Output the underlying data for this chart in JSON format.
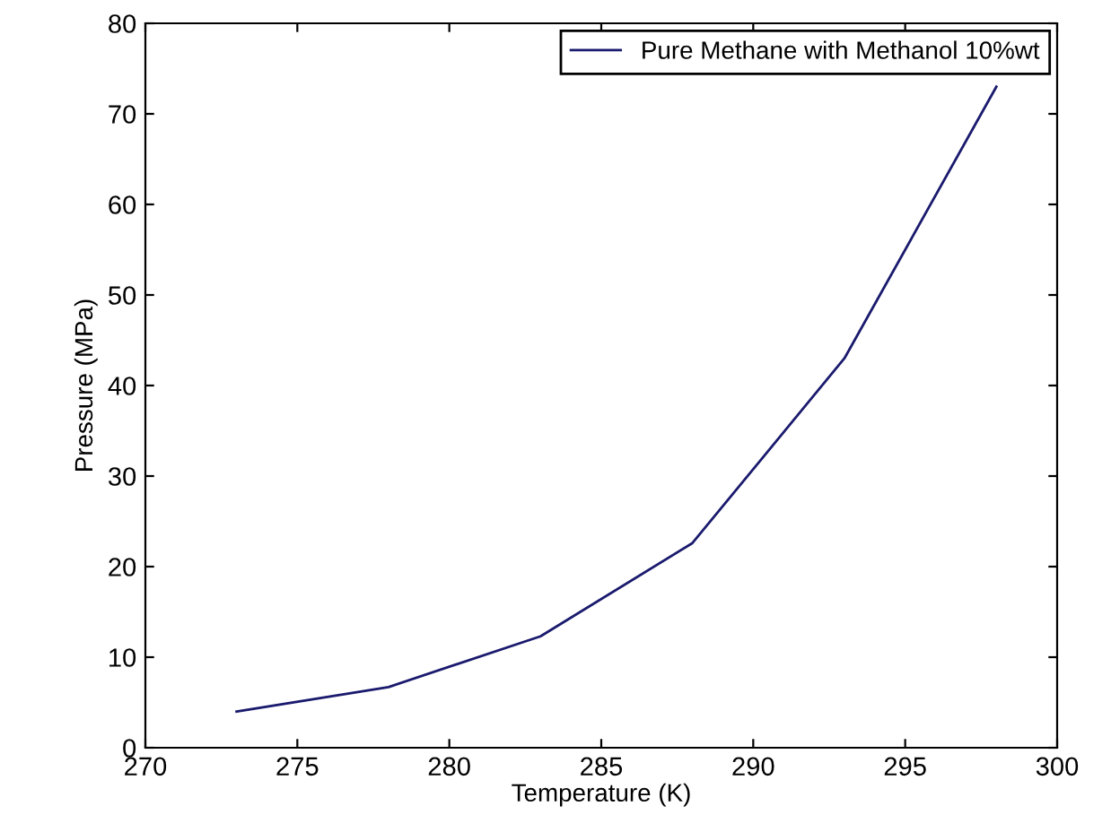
{
  "chart_data": {
    "type": "line",
    "xlabel": "Temperature (K)",
    "ylabel": "Pressure (MPa)",
    "x": [
      273,
      278,
      283,
      288,
      293,
      298
    ],
    "series": [
      {
        "name": "Pure Methane with Methanol 10%wt",
        "color": "#1a1a6e",
        "values": [
          4.0,
          6.7,
          12.3,
          22.6,
          43,
          73
        ]
      }
    ],
    "xlim": [
      270,
      300
    ],
    "xticks": [
      270,
      275,
      280,
      285,
      290,
      295,
      300
    ],
    "ylim": [
      0,
      80
    ],
    "yticks": [
      0,
      10,
      20,
      30,
      40,
      50,
      60,
      70,
      80
    ],
    "grid": false,
    "legend": "top right",
    "marker": "none",
    "line_style": "solid"
  }
}
